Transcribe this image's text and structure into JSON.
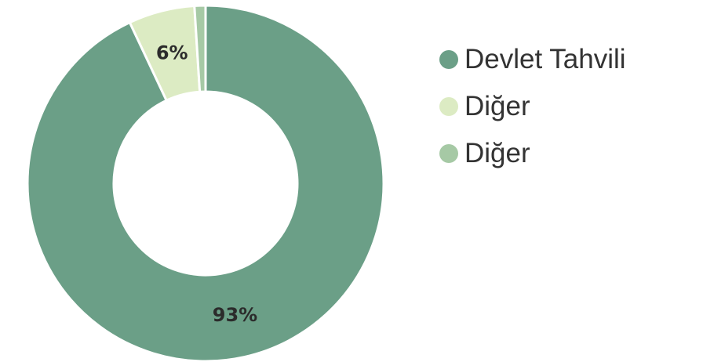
{
  "chart_data": {
    "type": "pie",
    "title": "",
    "donut": true,
    "legend_position": "right",
    "slices": [
      {
        "label": "Devlet Tahvili",
        "value": 93,
        "display": "93%",
        "color": "#6b9f87"
      },
      {
        "label": "Diğer",
        "value": 6,
        "display": "6%",
        "color": "#dcebc3"
      },
      {
        "label": "Diğer",
        "value": 1,
        "display": "",
        "color": "#a6c9a5"
      }
    ]
  }
}
